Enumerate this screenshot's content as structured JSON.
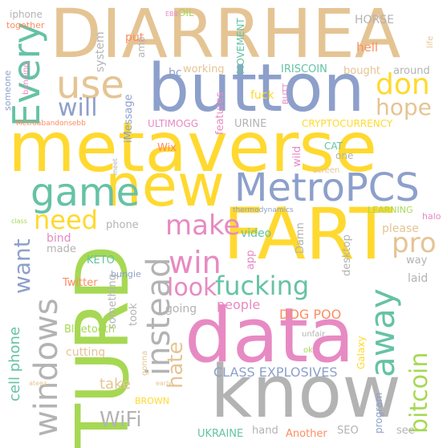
{
  "colors": {
    "tan": "#e5c494",
    "blue": "#8da0cb",
    "yellow": "#ffd92f",
    "green": "#a6d854",
    "pink": "#e78ac3",
    "teal": "#66c2a5",
    "orange": "#fc8d62",
    "gray": "#b3b3b3"
  },
  "words": {
    "diarrhea": "DIARRHEA",
    "button": "button",
    "metaverse": "metaverse",
    "new": "new",
    "metropcs": "MetroPCS",
    "fart": "FART",
    "data": "data",
    "turd": "TURD",
    "know": "know",
    "use": "use",
    "game": "game",
    "every": "Every",
    "will": "will",
    "don": "don",
    "hope": "hope",
    "need": "need",
    "make": "make",
    "win": "win",
    "pro": "pro",
    "want": "want",
    "look": "look",
    "fucking": "fucking",
    "instead": "instead",
    "away": "away",
    "windows": "windows",
    "bitcoin": "bitcoin",
    "hate": "hate",
    "wifi": "WiFi",
    "people": "people",
    "dog_poo": "DOG POO",
    "class_explosives": "CLASS EXPLOSIVES",
    "take": "take",
    "cell_phone": "cell phone",
    "iphone": "iphone",
    "together": "together",
    "oil": "OIL",
    "ebb": "EBB",
    "horse": "HORSE",
    "life": "life",
    "put": "put",
    "amp": "amp",
    "system": "system",
    "someone": "someone",
    "banning": "banning",
    "movement": "MOVEMENT",
    "hell": "hell",
    "working": "working",
    "bc": "bc",
    "iriscoin": "IRISCOIN",
    "bought": "bought",
    "around": "around",
    "fuck": "fuck",
    "butt": "BUTT",
    "imessage": "iMessage",
    "metroabandonsebb": "Metroabandonsebb",
    "ultimogg": "ULTIMOGG",
    "features": "features",
    "urine": "URINE",
    "cryptocurrency": "CRYPTOCURRENCY",
    "wix": "Wix",
    "wild": "wild",
    "cat": "CAT",
    "one": "one",
    "meet": "meet",
    "screen": "screen",
    "class": "class",
    "thermodynamics": "thermodynamics",
    "learning": "LEARNING",
    "halo": "halo",
    "phone": "phone",
    "damn": "Damn",
    "please": "please",
    "bind": "bind",
    "video": "video",
    "made": "made",
    "app": "app",
    "desktop": "desktop",
    "way": "way",
    "keto": "KETO",
    "bungie": "bungie",
    "laid": "laid",
    "something": "something",
    "twitter": "Twitter",
    "took": "took",
    "going": "going",
    "bluetooth": "Bluetooth",
    "unfair": "unfair",
    "cutting": "cutting",
    "ok": "ok",
    "galaxy": "Galaxy",
    "gonna": "gonna",
    "ateez": "ateez",
    "early": "early",
    "brown": "BROWN",
    "program": "program",
    "see": "see",
    "ukraine": "UKRAINE",
    "hand": "hand",
    "another": "Another",
    "seo": "SEO"
  }
}
